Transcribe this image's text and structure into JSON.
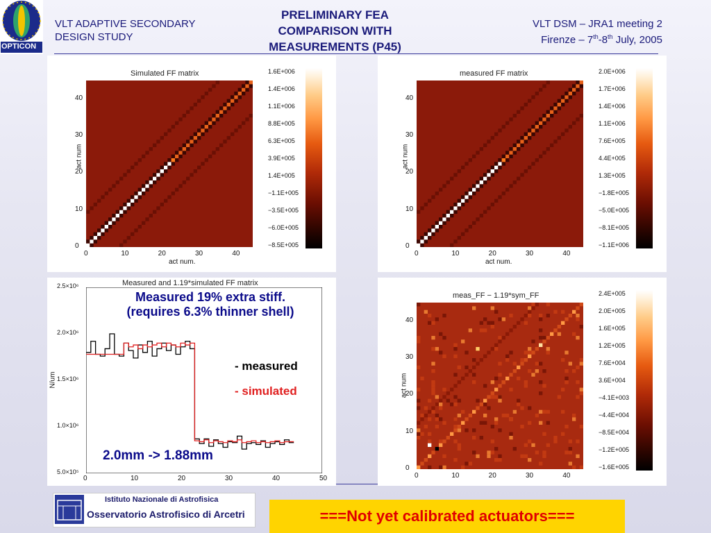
{
  "header": {
    "left_line1": "VLT ADAPTIVE SECONDARY",
    "left_line2": "DESIGN STUDY",
    "title_line1": "PRELIMINARY FEA",
    "title_line2": "COMPARISON WITH",
    "title_line3": "MEASUREMENTS (P45)",
    "right_line1": "VLT DSM – JRA1 meeting 2",
    "right_line2_a": "Firenze – 7",
    "right_line2_sup1": "th",
    "right_line2_b": "-8",
    "right_line2_sup2": "th",
    "right_line2_c": " July, 2005",
    "logo_text": "OPTICON"
  },
  "panel_sim": {
    "title": "Simulated FF matrix",
    "xlabel": "act num.",
    "ylabel": "act num",
    "xticks": [
      "0",
      "10",
      "20",
      "30",
      "40"
    ],
    "yticks": [
      "0",
      "10",
      "20",
      "30",
      "40"
    ],
    "cbar": [
      "1.6E+006",
      "1.4E+006",
      "1.1E+006",
      "8.8E+005",
      "6.3E+005",
      "3.9E+005",
      "1.4E+005",
      "−1.1E+005",
      "−3.5E+005",
      "−6.0E+005",
      "−8.5E+005"
    ]
  },
  "panel_meas": {
    "title": "measured FF matrix",
    "xlabel": "act num.",
    "ylabel": "act num",
    "xticks": [
      "0",
      "10",
      "20",
      "30",
      "40"
    ],
    "yticks": [
      "0",
      "10",
      "20",
      "30",
      "40"
    ],
    "cbar": [
      "2.0E+006",
      "1.7E+006",
      "1.4E+006",
      "1.1E+006",
      "7.6E+005",
      "4.4E+005",
      "1.3E+005",
      "−1.8E+005",
      "−5.0E+005",
      "−8.1E+005",
      "−1.1E+006"
    ]
  },
  "panel_plot": {
    "title": "Measured and 1.19*simulated FF matrix",
    "ylabel": "N/um",
    "xticks": [
      "0",
      "10",
      "20",
      "30",
      "40",
      "50"
    ],
    "yticks": [
      "2.5×10⁶",
      "2.0×10⁶",
      "1.5×10⁶",
      "1.0×10⁶",
      "5.0×10⁵"
    ],
    "overlay1": "Measured 19% extra stiff.",
    "overlay2": "(requires 6.3% thinner shell)",
    "legend_measured": "- measured",
    "legend_simulated": "- simulated",
    "note": "2.0mm -> 1.88mm",
    "colors": {
      "measured": "#000000",
      "simulated": "#e02020",
      "overlay": "#0a0a8a"
    }
  },
  "panel_diff": {
    "title": "meas_FF − 1.19*sym_FF",
    "xticks": [
      "0",
      "10",
      "20",
      "30",
      "40"
    ],
    "yticks": [
      "0",
      "10",
      "20",
      "30",
      "40"
    ],
    "ylabel": "act num",
    "cbar": [
      "2.4E+005",
      "2.0E+005",
      "1.6E+005",
      "1.2E+005",
      "7.6E+004",
      "3.6E+004",
      "−4.1E+003",
      "−4.4E+004",
      "−8.5E+004",
      "−1.2E+005",
      "−1.6E+005"
    ]
  },
  "footer": {
    "institute_line1": "Istituto Nazionale di Astrofisica",
    "institute_line2": "Osservatorio Astrofisico di Arcetri",
    "banner": "===Not yet calibrated actuators==="
  },
  "chart_data": [
    {
      "type": "line",
      "title": "Measured and 1.19*simulated FF matrix",
      "ylabel": "N/um",
      "xlim": [
        0,
        50
      ],
      "ylim": [
        500000,
        2500000
      ],
      "series": [
        {
          "name": "measured",
          "x": [
            0,
            1,
            2,
            3,
            4,
            5,
            6,
            7,
            8,
            9,
            10,
            11,
            12,
            13,
            14,
            15,
            16,
            17,
            18,
            19,
            20,
            21,
            22,
            23,
            24,
            25,
            26,
            27,
            28,
            29,
            30,
            31,
            32,
            33,
            34,
            35,
            36,
            37,
            38,
            39,
            40,
            41,
            42,
            43
          ],
          "values": [
            1800000,
            1920000,
            1780000,
            1760000,
            1840000,
            2000000,
            1780000,
            1760000,
            1900000,
            1820000,
            1740000,
            1880000,
            1800000,
            1920000,
            1760000,
            1840000,
            1900000,
            1820000,
            1880000,
            1780000,
            1860000,
            1920000,
            1840000,
            870000,
            820000,
            870000,
            790000,
            860000,
            820000,
            780000,
            840000,
            830000,
            900000,
            760000,
            820000,
            830000,
            810000,
            850000,
            780000,
            820000,
            840000,
            810000,
            860000,
            830000
          ]
        },
        {
          "name": "simulated",
          "x": [
            0,
            1,
            2,
            3,
            4,
            5,
            6,
            7,
            8,
            9,
            10,
            11,
            12,
            13,
            14,
            15,
            16,
            17,
            18,
            19,
            20,
            21,
            22,
            23,
            24,
            25,
            26,
            27,
            28,
            29,
            30,
            31,
            32,
            33,
            34,
            35,
            36,
            37,
            38,
            39,
            40,
            41,
            42,
            43
          ],
          "values": [
            1780000,
            1780000,
            1780000,
            1780000,
            1780000,
            1780000,
            1780000,
            1780000,
            1900000,
            1860000,
            1880000,
            1840000,
            1880000,
            1860000,
            1880000,
            1900000,
            1860000,
            1900000,
            1880000,
            1860000,
            1900000,
            1880000,
            1900000,
            850000,
            840000,
            860000,
            830000,
            850000,
            840000,
            830000,
            850000,
            840000,
            860000,
            830000,
            840000,
            850000,
            830000,
            840000,
            830000,
            840000,
            850000,
            830000,
            840000,
            840000
          ]
        }
      ]
    },
    {
      "type": "heatmap",
      "title": "Simulated FF matrix",
      "xlabel": "act num.",
      "ylabel": "act num",
      "xlim": [
        0,
        45
      ],
      "ylim": [
        0,
        45
      ]
    },
    {
      "type": "heatmap",
      "title": "measured FF matrix",
      "xlabel": "act num.",
      "ylabel": "act num",
      "xlim": [
        0,
        45
      ],
      "ylim": [
        0,
        45
      ]
    },
    {
      "type": "heatmap",
      "title": "meas_FF − 1.19*sym_FF",
      "ylabel": "act num",
      "xlim": [
        0,
        45
      ],
      "ylim": [
        0,
        45
      ]
    }
  ]
}
